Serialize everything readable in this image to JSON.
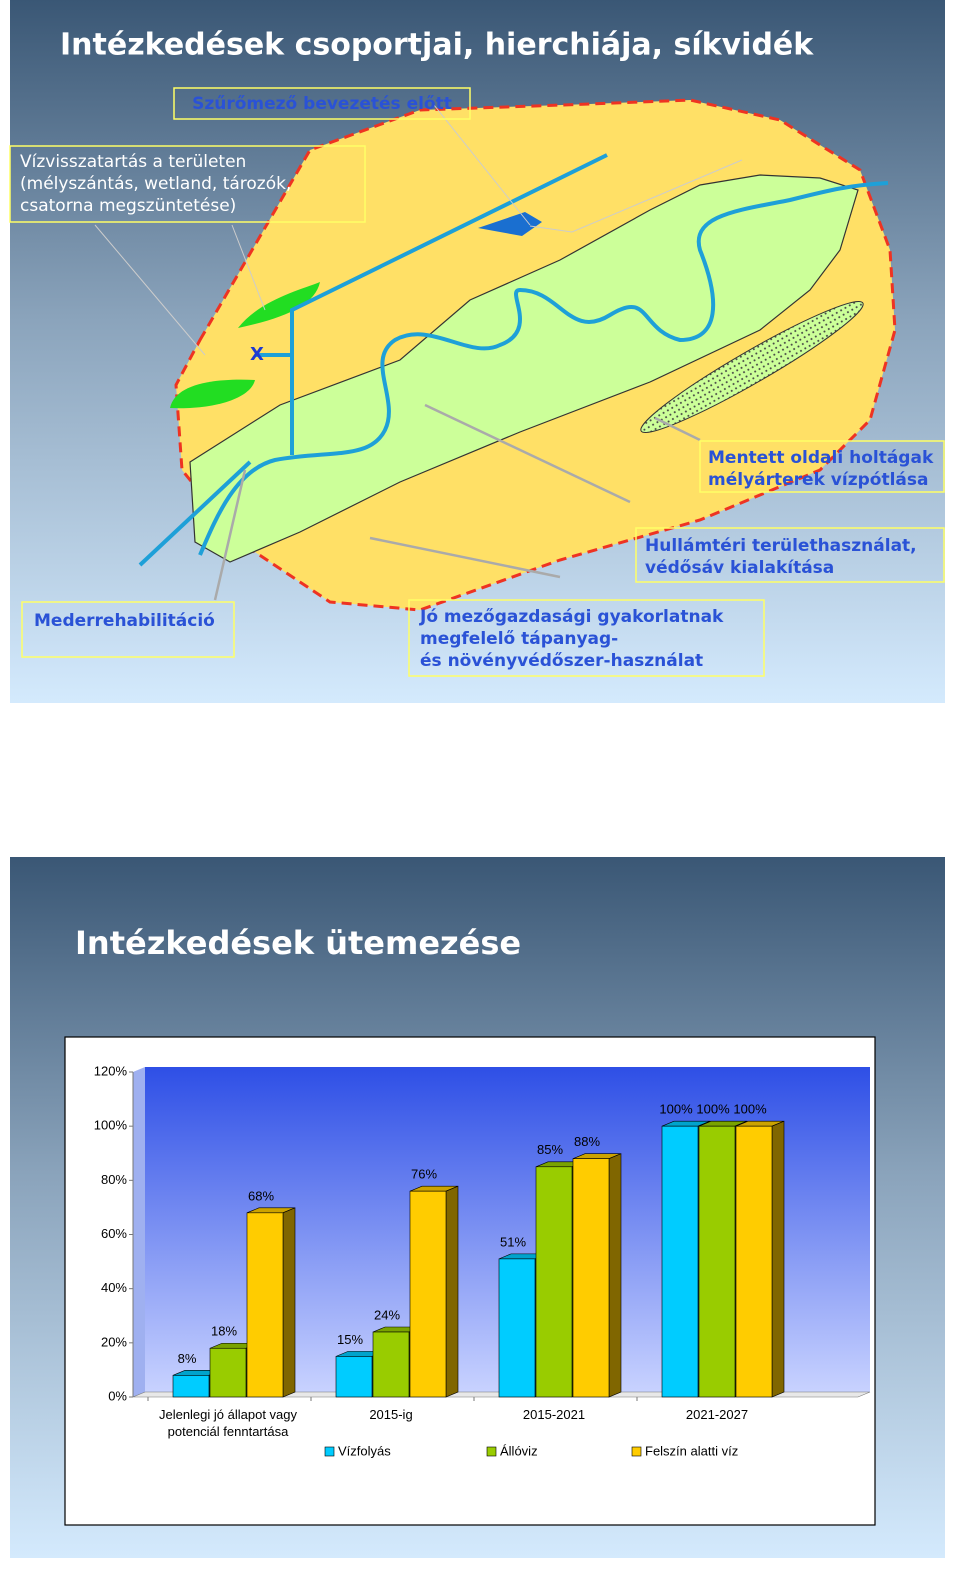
{
  "slide1": {
    "title": "Intézkedések csoportjai, hierchiája, síkvidék",
    "marker": "X",
    "callouts": [
      [
        "Szűrőmező bevezetés előtt"
      ],
      [
        "Vízvisszatartás a területen",
        "(mélyszántás, wetland, tározók,",
        "csatorna megszüntetése)"
      ],
      [
        "Mentett oldali holtágak",
        "mélyárterek vízpótlása"
      ],
      [
        "Hullámtéri területhasználat,",
        "védősáv kialakítása"
      ],
      [
        "Mederrehabilitáció"
      ],
      [
        "Jó mezőgazdasági gyakorlatnak",
        "megfelelő tápanyag-",
        "és növényvédőszer-használat"
      ]
    ]
  },
  "chart_data": {
    "type": "bar3d",
    "title": "Intézkedések ütemezése",
    "categories": [
      "Jelenlegi jó állapot vagy potenciál fenntartása",
      "2015-ig",
      "2015-2021",
      "2021-2027"
    ],
    "series": [
      {
        "name": "Vízfolyás",
        "color": "#00ccff",
        "values": [
          8,
          15,
          51,
          100
        ],
        "value_labels": [
          "8%",
          "15%",
          "51%",
          "100%"
        ]
      },
      {
        "name": "Állóviz",
        "color": "#99cc00",
        "values": [
          18,
          24,
          85,
          100
        ],
        "value_labels": [
          "18%",
          "24%",
          "85%",
          "100%"
        ]
      },
      {
        "name": "Felszín alatti víz",
        "color": "#ffcc00",
        "values": [
          68,
          76,
          88,
          100
        ],
        "value_labels": [
          "68%",
          "76%",
          "88%",
          "100%"
        ]
      }
    ],
    "ylim": [
      0,
      120
    ],
    "yticks": [
      {
        "value": 0,
        "label": "0%"
      },
      {
        "value": 20,
        "label": "20%"
      },
      {
        "value": 40,
        "label": "40%"
      },
      {
        "value": 60,
        "label": "60%"
      },
      {
        "value": 80,
        "label": "80%"
      },
      {
        "value": 100,
        "label": "100%"
      },
      {
        "value": 120,
        "label": "120%"
      }
    ],
    "legend": "bottom"
  }
}
